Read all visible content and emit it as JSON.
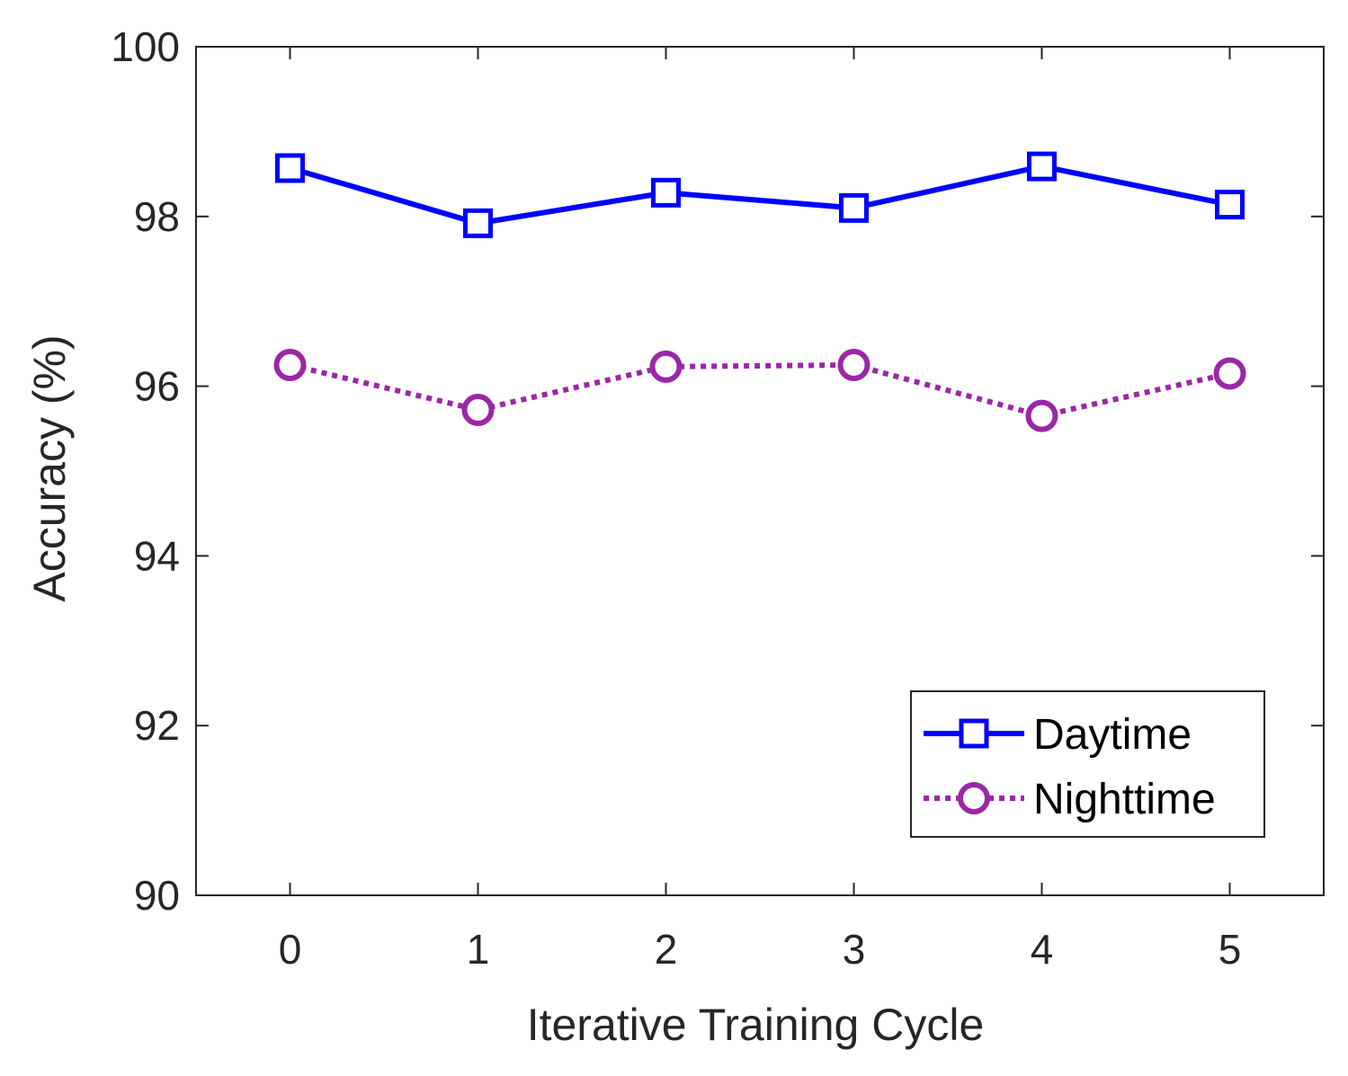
{
  "chart_data": {
    "type": "line",
    "title": "",
    "xlabel": "Iterative Training Cycle",
    "ylabel": "Accuracy (%)",
    "x": [
      0,
      1,
      2,
      3,
      4,
      5
    ],
    "xlim": [
      -0.5,
      5.5
    ],
    "ylim": [
      90,
      100
    ],
    "xticks": [
      0,
      1,
      2,
      3,
      4,
      5
    ],
    "yticks": [
      90,
      92,
      94,
      96,
      98,
      100
    ],
    "grid": false,
    "legend_position": "bottom-right",
    "series": [
      {
        "name": "Daytime",
        "values": [
          98.57,
          97.92,
          98.28,
          98.1,
          98.59,
          98.14
        ],
        "color": "#0000ff",
        "line_style": "solid",
        "marker": "square"
      },
      {
        "name": "Nighttime",
        "values": [
          96.25,
          95.72,
          96.23,
          96.25,
          95.65,
          96.15
        ],
        "color": "#9b27a6",
        "line_style": "dotted",
        "marker": "circle"
      }
    ]
  }
}
